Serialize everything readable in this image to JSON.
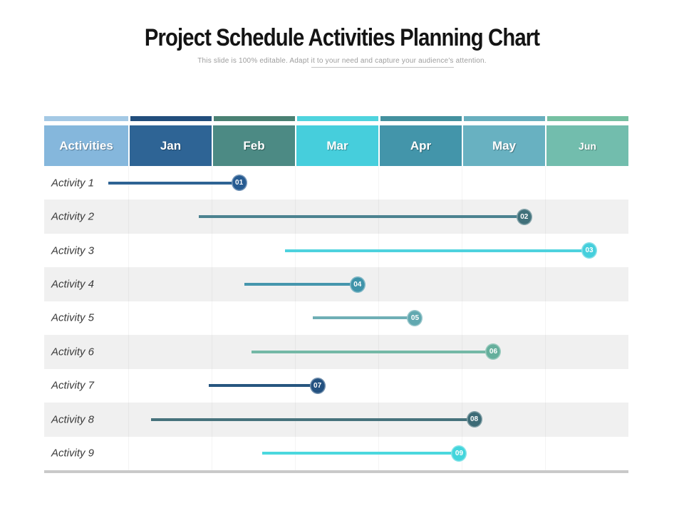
{
  "title": "Project Schedule Activities Planning Chart",
  "subtitle": {
    "part1": "This slide is 100% editable. Adapt ",
    "part2": "it to your need and capture your audience's",
    "part3": " attention."
  },
  "table": {
    "activities_header": "Activities",
    "activities_header_color": "#85b7dc",
    "activities_strip_color": "#a4c9e5",
    "row_alt_color": "#f0f0f0",
    "months": [
      {
        "label": "Jan",
        "color": "#2e6495",
        "strip_color": "#224e7d"
      },
      {
        "label": "Feb",
        "color": "#4c8a84",
        "strip_color": "#4a8173"
      },
      {
        "label": "Mar",
        "color": "#46cedc",
        "strip_color": "#4fd4de"
      },
      {
        "label": "Apr",
        "color": "#4395aa",
        "strip_color": "#44919f"
      },
      {
        "label": "May",
        "color": "#68b1c1",
        "strip_color": "#68afbe"
      },
      {
        "label": "Jun",
        "color": "#72bdad",
        "strip_color": "#76c0a2"
      }
    ]
  },
  "chart_data": {
    "type": "bar",
    "subtype": "gantt",
    "title": "Project Schedule Activities Planning Chart",
    "categories": [
      "Jan",
      "Feb",
      "Mar",
      "Apr",
      "May",
      "Jun"
    ],
    "x_axis_unit": "months (0 = start of Jan)",
    "activities": [
      {
        "label": "Activity 1",
        "badge": "01",
        "start": -0.24,
        "end": 1.33,
        "line_color": "#2e6394",
        "badge_color": "#275b91"
      },
      {
        "label": "Activity 2",
        "badge": "02",
        "start": 0.85,
        "end": 4.75,
        "line_color": "#4c8290",
        "badge_color": "#40707a"
      },
      {
        "label": "Activity 3",
        "badge": "03",
        "start": 1.88,
        "end": 5.53,
        "line_color": "#4dd2de",
        "badge_color": "#45cfdc"
      },
      {
        "label": "Activity 4",
        "badge": "04",
        "start": 1.39,
        "end": 2.75,
        "line_color": "#4596ad",
        "badge_color": "#3e93a9"
      },
      {
        "label": "Activity 5",
        "badge": "05",
        "start": 2.21,
        "end": 3.44,
        "line_color": "#6fafb5",
        "badge_color": "#61a8b0"
      },
      {
        "label": "Activity 6",
        "badge": "06",
        "start": 1.48,
        "end": 4.38,
        "line_color": "#74b8a6",
        "badge_color": "#65af9c"
      },
      {
        "label": "Activity 7",
        "badge": "07",
        "start": 0.97,
        "end": 2.27,
        "line_color": "#27567f",
        "badge_color": "#235180"
      },
      {
        "label": "Activity 8",
        "badge": "08",
        "start": 0.27,
        "end": 4.15,
        "line_color": "#47727c",
        "badge_color": "#3d6b76"
      },
      {
        "label": "Activity 9",
        "badge": "09",
        "start": 1.61,
        "end": 3.97,
        "line_color": "#4bd8de",
        "badge_color": "#43d5dc"
      }
    ]
  }
}
